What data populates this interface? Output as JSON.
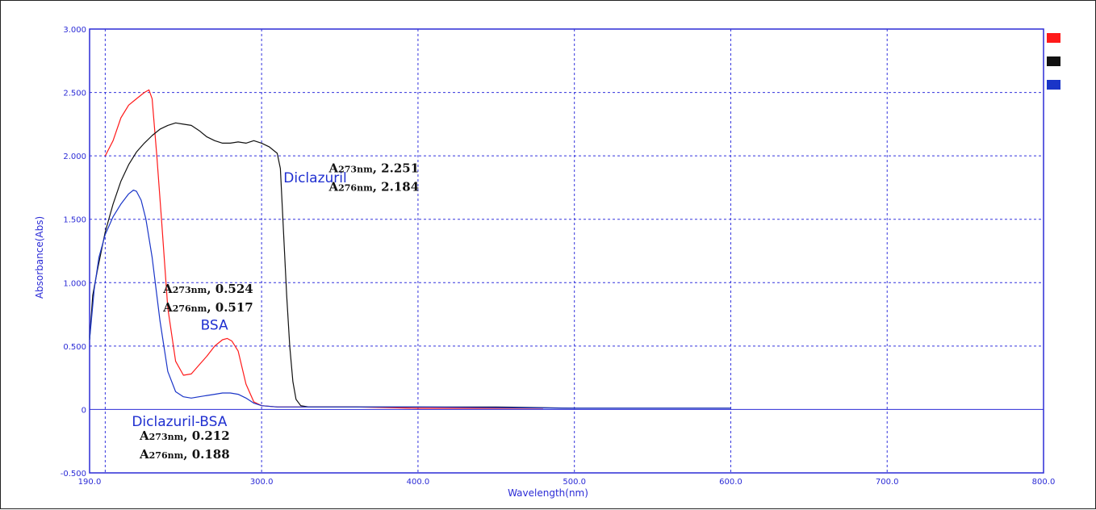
{
  "chart_data": {
    "type": "line",
    "xlabel": "Wavelength(nm)",
    "ylabel": "Absorbance(Abs)",
    "xlim": [
      190.0,
      800.0
    ],
    "ylim": [
      -0.5,
      3.0
    ],
    "x_ticks": [
      "190.0",
      "300.0",
      "400.0",
      "500.0",
      "600.0",
      "700.0",
      "800.0"
    ],
    "y_ticks": [
      "-0.500",
      "0",
      "0.500",
      "1.000",
      "1.500",
      "2.000",
      "2.500",
      "3.000"
    ],
    "grid": true,
    "legend_position": "top-right",
    "series": [
      {
        "color": "#ff1a1a",
        "x": [
          200,
          205,
          210,
          215,
          220,
          225,
          228,
          230,
          233,
          236,
          240,
          245,
          250,
          255,
          260,
          265,
          270,
          275,
          278,
          281,
          285,
          290,
          295,
          300,
          310,
          330,
          360,
          400,
          450,
          480
        ],
        "y": [
          2.0,
          2.12,
          2.3,
          2.4,
          2.45,
          2.5,
          2.52,
          2.45,
          2.0,
          1.5,
          0.8,
          0.38,
          0.27,
          0.28,
          0.35,
          0.42,
          0.5,
          0.55,
          0.56,
          0.54,
          0.46,
          0.2,
          0.06,
          0.03,
          0.02,
          0.02,
          0.02,
          0.01,
          0.01,
          0.01
        ]
      },
      {
        "color": "#111111",
        "x": [
          190,
          192,
          195,
          200,
          205,
          210,
          215,
          220,
          225,
          230,
          235,
          240,
          245,
          250,
          255,
          260,
          265,
          270,
          275,
          280,
          285,
          290,
          295,
          300,
          305,
          310,
          312,
          314,
          316,
          318,
          320,
          322,
          325,
          330,
          340,
          360,
          400,
          450,
          500,
          550,
          600
        ],
        "y": [
          0.55,
          0.9,
          1.1,
          1.4,
          1.62,
          1.8,
          1.93,
          2.03,
          2.1,
          2.16,
          2.21,
          2.24,
          2.26,
          2.25,
          2.24,
          2.2,
          2.15,
          2.12,
          2.1,
          2.1,
          2.11,
          2.1,
          2.12,
          2.1,
          2.07,
          2.02,
          1.9,
          1.4,
          0.9,
          0.5,
          0.22,
          0.08,
          0.03,
          0.02,
          0.02,
          0.02,
          0.02,
          0.02,
          0.01,
          0.01,
          0.01
        ]
      },
      {
        "color": "#1a35c8",
        "x": [
          190,
          193,
          196,
          200,
          205,
          210,
          215,
          218,
          220,
          223,
          226,
          230,
          235,
          240,
          245,
          250,
          255,
          260,
          265,
          270,
          275,
          280,
          285,
          290,
          295,
          300,
          310,
          340,
          400,
          500,
          600
        ],
        "y": [
          0.55,
          0.95,
          1.2,
          1.38,
          1.52,
          1.62,
          1.7,
          1.73,
          1.72,
          1.65,
          1.5,
          1.2,
          0.7,
          0.3,
          0.14,
          0.1,
          0.09,
          0.1,
          0.11,
          0.12,
          0.13,
          0.13,
          0.12,
          0.09,
          0.05,
          0.03,
          0.02,
          0.02,
          0.02,
          0.01,
          0.01
        ]
      }
    ],
    "annotations": [
      {
        "text": "Diclazuril",
        "x": 314,
        "y": 1.79,
        "style": "blue"
      },
      {
        "lines": [
          "A|273nm|, 2.251",
          "A|276nm|, 2.184"
        ],
        "x": 343,
        "y": 1.87,
        "style": "black"
      },
      {
        "lines": [
          "A|273nm|, 0.524",
          "A|276nm|, 0.517"
        ],
        "x": 237,
        "y": 0.92,
        "style": "black"
      },
      {
        "text": "BSA",
        "x": 261,
        "y": 0.63,
        "style": "blue"
      },
      {
        "text": "Diclazuril-BSA",
        "x": 217,
        "y": -0.13,
        "style": "blue"
      },
      {
        "lines": [
          "A|273nm|, 0.212",
          "A|276nm|, 0.188"
        ],
        "x": 222,
        "y": -0.24,
        "style": "black"
      }
    ]
  }
}
